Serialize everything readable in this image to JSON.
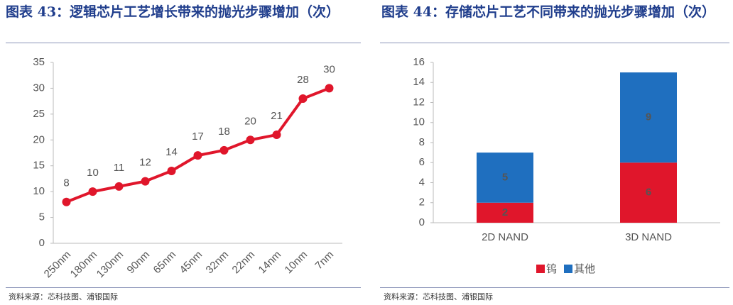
{
  "chart_data": [
    {
      "type": "line",
      "title": "图表 43：逻辑芯片工艺增长带来的抛光步骤增加（次）",
      "categories": [
        "250nm",
        "180nm",
        "130nm",
        "90nm",
        "65nm",
        "45nm",
        "32nm",
        "22nm",
        "14nm",
        "10nm",
        "7nm"
      ],
      "values": [
        8,
        10,
        11,
        12,
        14,
        17,
        18,
        20,
        21,
        28,
        30
      ],
      "color": "#e0162b",
      "ylim": [
        0,
        35
      ],
      "yticks": [
        0,
        5,
        10,
        15,
        20,
        25,
        30,
        35
      ],
      "source": "资料来源：芯科技图、浦银国际"
    },
    {
      "type": "stacked_bar",
      "title": "图表 44：存储芯片工艺不同带来的抛光步骤增加（次）",
      "categories": [
        "2D NAND",
        "3D NAND"
      ],
      "series": [
        {
          "name": "钨",
          "color": "#e0162b",
          "values": [
            2,
            6
          ]
        },
        {
          "name": "其他",
          "color": "#1f6fbf",
          "values": [
            5,
            9
          ]
        }
      ],
      "ylim": [
        0,
        16
      ],
      "yticks": [
        0,
        2,
        4,
        6,
        8,
        10,
        12,
        14,
        16
      ],
      "source": "资料来源：芯科技图、浦银国际"
    }
  ]
}
